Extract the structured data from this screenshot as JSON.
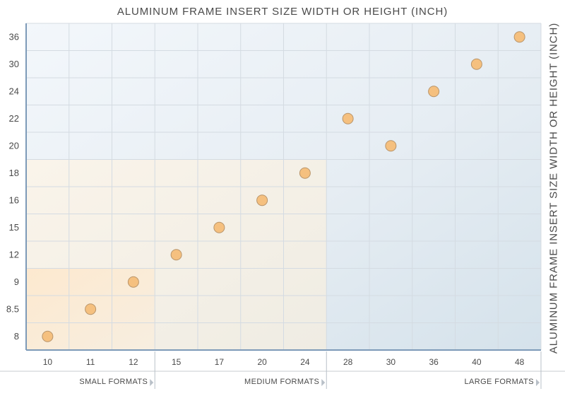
{
  "chart_data": {
    "type": "scatter",
    "title": "ALUMINUM FRAME INSERT SIZE WIDTH OR HEIGHT (INCH)",
    "ylabel": "ALUMINUM FRAME INSERT SIZE WIDTH OR HEIGHT (INCH)",
    "x_categories": [
      "10",
      "11",
      "12",
      "15",
      "17",
      "20",
      "24",
      "28",
      "30",
      "36",
      "40",
      "48"
    ],
    "y_categories": [
      "8",
      "8.5",
      "9",
      "12",
      "15",
      "16",
      "18",
      "20",
      "22",
      "24",
      "30",
      "36"
    ],
    "points": [
      {
        "x": "10",
        "y": "8"
      },
      {
        "x": "11",
        "y": "8.5"
      },
      {
        "x": "12",
        "y": "9"
      },
      {
        "x": "15",
        "y": "12"
      },
      {
        "x": "17",
        "y": "15"
      },
      {
        "x": "20",
        "y": "16"
      },
      {
        "x": "24",
        "y": "18"
      },
      {
        "x": "28",
        "y": "22"
      },
      {
        "x": "30",
        "y": "20"
      },
      {
        "x": "36",
        "y": "24"
      },
      {
        "x": "40",
        "y": "30"
      },
      {
        "x": "48",
        "y": "36"
      }
    ],
    "regions": [
      {
        "label": "SMALL FORMATS",
        "x_max": "12",
        "y_max": "9"
      },
      {
        "label": "MEDIUM FORMATS",
        "x_max": "24",
        "y_max": "18"
      },
      {
        "label": "LARGE FORMATS",
        "x_max": "48",
        "y_max": "36"
      }
    ],
    "grid": true,
    "colors": {
      "point_fill": "#f5c07f",
      "point_stroke": "#b8946a",
      "axis": "#7d9ab8",
      "grid": "#d4dbe2",
      "small_region": "#fdecd4",
      "medium_region": "#f1ece1",
      "large_region": "#dde7ef"
    }
  }
}
